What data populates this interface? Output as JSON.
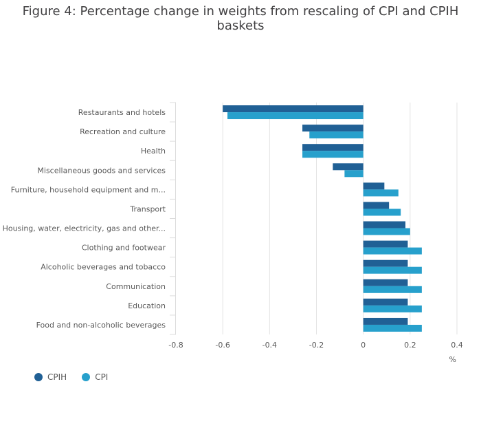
{
  "title": "Figure 4: Percentage change in weights from rescaling of CPI and CPIH baskets",
  "chart_data": {
    "type": "bar",
    "orientation": "horizontal",
    "title": "Figure 4: Percentage change in weights from rescaling of CPI and CPIH baskets",
    "xlabel": "%",
    "ylabel": "",
    "xlim": [
      -0.8,
      0.4
    ],
    "xticks": [
      -0.8,
      -0.6,
      -0.4,
      -0.2,
      0,
      0.2,
      0.4
    ],
    "xtick_labels": [
      "-0.8",
      "-0.6",
      "-0.4",
      "-0.2",
      "0",
      "0.2",
      "0.4"
    ],
    "grid": true,
    "legend_position": "bottom-left",
    "categories": [
      "Restaurants and hotels",
      "Recreation and culture",
      "Health",
      "Miscellaneous goods and services",
      "Furniture, household equipment and m...",
      "Transport",
      "Housing, water, electricity, gas and other...",
      "Clothing and footwear",
      "Alcoholic beverages and tobacco",
      "Communication",
      "Education",
      "Food and non-alcoholic beverages"
    ],
    "series": [
      {
        "name": "CPIH",
        "color": "#206095",
        "values": [
          -0.6,
          -0.26,
          -0.26,
          -0.13,
          0.09,
          0.11,
          0.18,
          0.19,
          0.19,
          0.19,
          0.19,
          0.19
        ]
      },
      {
        "name": "CPI",
        "color": "#27a0cc",
        "values": [
          -0.58,
          -0.23,
          -0.26,
          -0.08,
          0.15,
          0.16,
          0.2,
          0.25,
          0.25,
          0.25,
          0.25,
          0.25
        ]
      }
    ]
  }
}
